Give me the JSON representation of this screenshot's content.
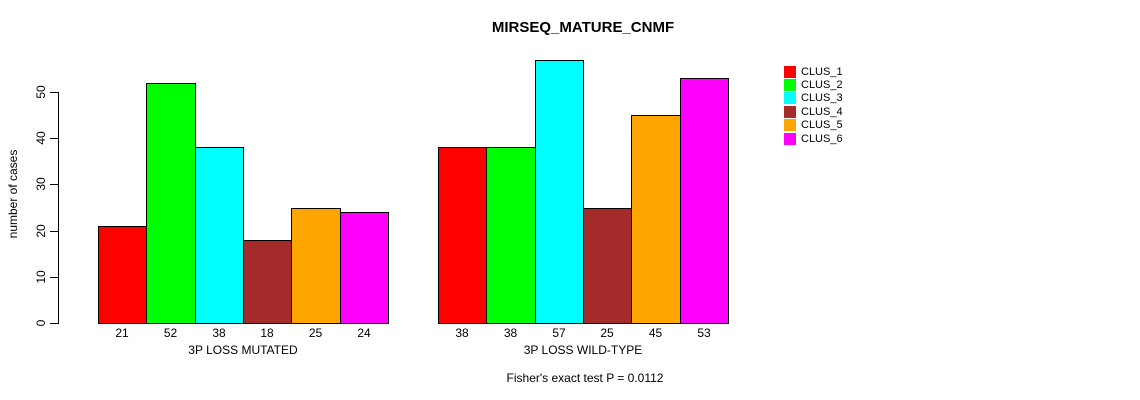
{
  "chart_data": {
    "type": "bar",
    "title": "MIRSEQ_MATURE_CNMF",
    "ylabel": "number of cases",
    "xlabel": "",
    "categories": [
      "3P LOSS MUTATED",
      "3P LOSS WILD-TYPE"
    ],
    "series": [
      {
        "name": "CLUS_1",
        "color": "#FF0000",
        "values": [
          21,
          38
        ]
      },
      {
        "name": "CLUS_2",
        "color": "#00FF00",
        "values": [
          52,
          38
        ]
      },
      {
        "name": "CLUS_3",
        "color": "#00FFFF",
        "values": [
          38,
          57
        ]
      },
      {
        "name": "CLUS_4",
        "color": "#A52A2A",
        "values": [
          18,
          25
        ]
      },
      {
        "name": "CLUS_5",
        "color": "#FFA500",
        "values": [
          25,
          45
        ]
      },
      {
        "name": "CLUS_6",
        "color": "#FF00FF",
        "values": [
          24,
          53
        ]
      }
    ],
    "yticks": [
      0,
      10,
      20,
      30,
      40,
      50
    ],
    "ylim": [
      0,
      57
    ],
    "grid": false,
    "bar_value_labels": true,
    "legend_position": "right",
    "legend": [
      "CLUS_1",
      "CLUS_2",
      "CLUS_3",
      "CLUS_4",
      "CLUS_5",
      "CLUS_6"
    ],
    "annotation": "Fisher's exact test P = 0.0112"
  },
  "colors": {
    "foreground": "#000000",
    "background": "#FFFFFF"
  }
}
